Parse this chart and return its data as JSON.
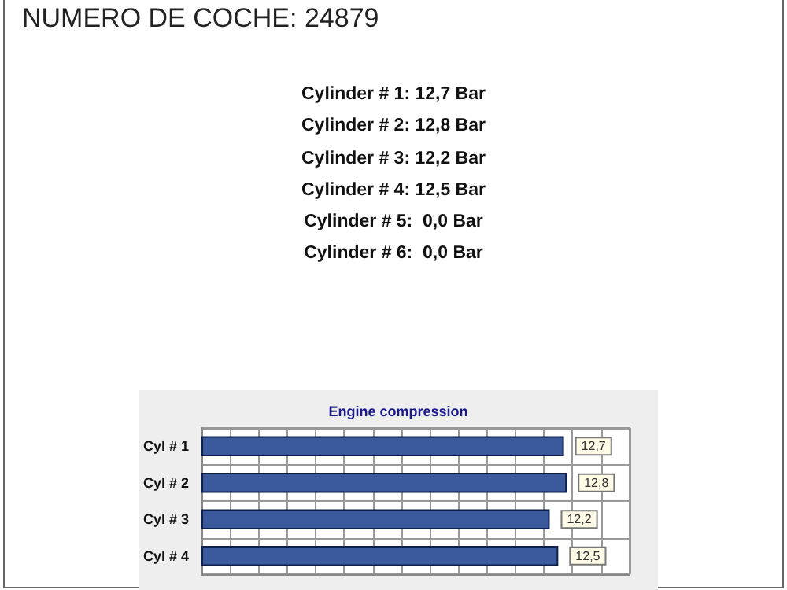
{
  "chart_data": {
    "type": "bar",
    "orientation": "horizontal",
    "title": "Engine compression",
    "annotations": [
      "NUMERO DE COCHE: 24879",
      "Cylinder # 1: 12,7 Bar",
      "Cylinder # 2: 12,8 Bar",
      "Cylinder # 3: 12,2 Bar",
      "Cylinder # 4: 12,5 Bar",
      "Cylinder # 5:  0,0 Bar",
      "Cylinder # 6:  0,0 Bar"
    ],
    "categories": [
      "Cyl # 1",
      "Cyl # 2",
      "Cyl # 3",
      "Cyl # 4"
    ],
    "values": [
      12.7,
      12.8,
      12.2,
      12.5
    ],
    "value_labels": [
      "12,7",
      "12,8",
      "12,2",
      "12,5"
    ],
    "color": "#3a5a9c",
    "xlim": [
      0,
      15
    ],
    "xticks": [
      {
        "value": 0,
        "label": null
      },
      {
        "value": 1,
        "label": null
      },
      {
        "value": 2,
        "label": null
      },
      {
        "value": 3,
        "label": null
      },
      {
        "value": 4,
        "label": null
      },
      {
        "value": 5,
        "label": null
      },
      {
        "value": 6,
        "label": null
      },
      {
        "value": 7,
        "label": null
      },
      {
        "value": 8,
        "label": null
      },
      {
        "value": 9,
        "label": null
      },
      {
        "value": 10,
        "label": null
      },
      {
        "value": 11,
        "label": null
      },
      {
        "value": 12,
        "label": null
      },
      {
        "value": 13,
        "label": null
      },
      {
        "value": 14,
        "label": null
      },
      {
        "value": 15,
        "label": null
      }
    ],
    "grid": true,
    "tick_labels": "y"
  }
}
